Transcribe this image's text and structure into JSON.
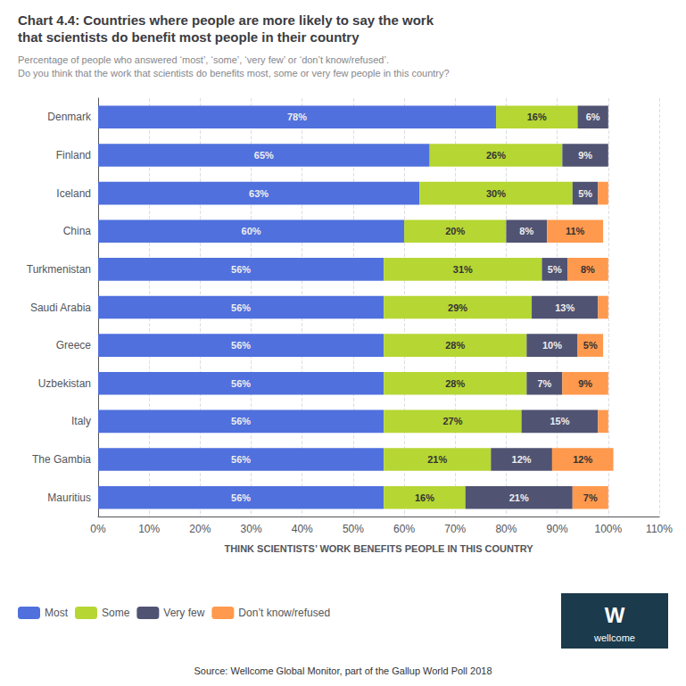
{
  "chart_data": {
    "type": "bar",
    "orientation": "horizontal",
    "stacked": true,
    "title": "Chart 4.4: Countries where people are more likely to say the work\nthat scientists do benefit most people in their country",
    "subtitle": "Percentage of people who answered ‘most’, ‘some’, ‘very few’ or ‘don’t know/refused’.\nDo you think that the work that scientists do benefits most, some or very few people in this country?",
    "xlabel": "THINK SCIENTISTS’ WORK BENEFITS PEOPLE IN THIS COUNTRY",
    "annotations": [
      "W",
      "wellcome",
      "Source: Wellcome Global Monitor, part of the Gallup World Poll 2018"
    ],
    "categories": [
      "Denmark",
      "Finland",
      "Iceland",
      "China",
      "Turkmenistan",
      "Saudi Arabia",
      "Greece",
      "Uzbekistan",
      "Italy",
      "The Gambia",
      "Mauritius"
    ],
    "series": [
      {
        "name": "Most",
        "values": [
          78,
          65,
          63,
          60,
          56,
          56,
          56,
          56,
          56,
          56,
          56
        ],
        "value_labels": [
          "78%",
          "65%",
          "63%",
          "60%",
          "56%",
          "56%",
          "56%",
          "56%",
          "56%",
          "56%",
          "56%"
        ]
      },
      {
        "name": "Some",
        "values": [
          16,
          26,
          30,
          20,
          31,
          29,
          28,
          28,
          27,
          21,
          16
        ],
        "value_labels": [
          "16%",
          "26%",
          "30%",
          "20%",
          "31%",
          "29%",
          "28%",
          "28%",
          "27%",
          "21%",
          "16%"
        ]
      },
      {
        "name": "Very few",
        "values": [
          6,
          9,
          5,
          8,
          5,
          13,
          10,
          7,
          15,
          12,
          21
        ],
        "value_labels": [
          "6%",
          "9%",
          "5%",
          "8%",
          "5%",
          "13%",
          "10%",
          "7%",
          "15%",
          "12%",
          "21%"
        ]
      },
      {
        "name": "Don’t know/refused",
        "values": [
          0,
          0,
          2,
          11,
          8,
          2,
          5,
          9,
          2,
          12,
          7
        ],
        "value_labels": [
          null,
          null,
          null,
          "11%",
          "8%",
          null,
          "5%",
          "9%",
          null,
          "12%",
          "7%"
        ]
      }
    ],
    "xlim": [
      0,
      110
    ],
    "xticks": [
      {
        "value": 0,
        "label": "0%"
      },
      {
        "value": 10,
        "label": "10%"
      },
      {
        "value": 20,
        "label": "20%"
      },
      {
        "value": 30,
        "label": "30%"
      },
      {
        "value": 40,
        "label": "40%"
      },
      {
        "value": 50,
        "label": "50%"
      },
      {
        "value": 60,
        "label": "60%"
      },
      {
        "value": 70,
        "label": "70%"
      },
      {
        "value": 80,
        "label": "80%"
      },
      {
        "value": 90,
        "label": "90%"
      },
      {
        "value": 100,
        "label": "100%"
      },
      {
        "value": 110,
        "label": "110%"
      }
    ],
    "grid": true,
    "legend": "bottom",
    "data_labels": true
  }
}
